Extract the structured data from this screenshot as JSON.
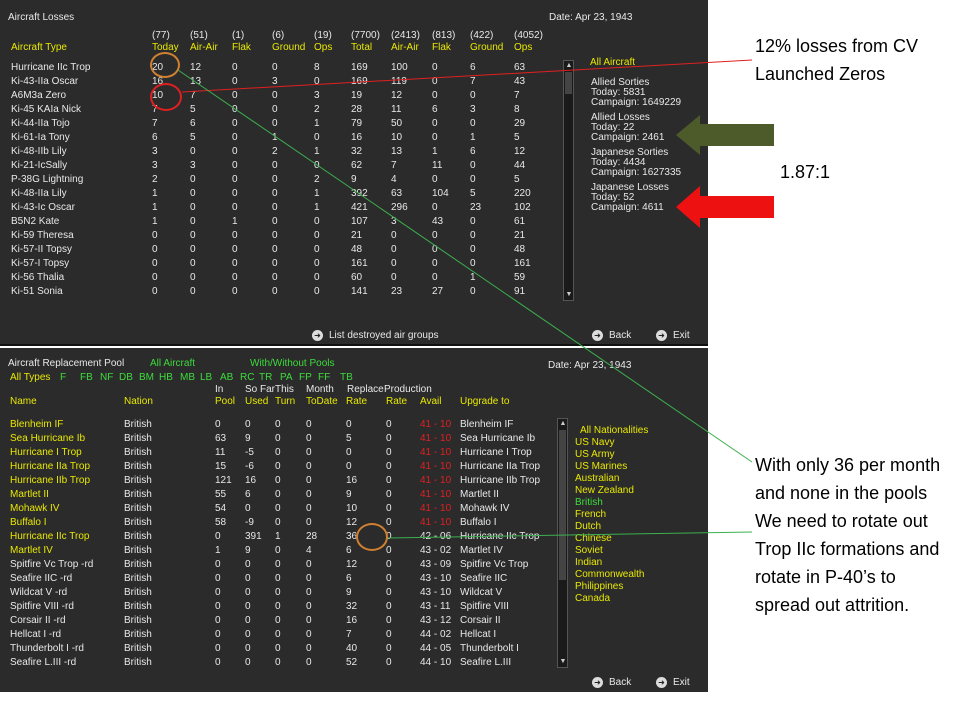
{
  "top": {
    "title": "Aircraft Losses",
    "date": "Date: Apr 23, 1943",
    "header_totals": [
      "(77)",
      "(51)",
      "(1)",
      "(6)",
      "(19)",
      "(7700)",
      "(2413)",
      "(813)",
      "(422)",
      "(4052)"
    ],
    "columns": [
      "Aircraft Type",
      "Today",
      "Air-Air",
      "Flak",
      "Ground",
      "Ops",
      "Total",
      "Air-Air",
      "Flak",
      "Ground",
      "Ops"
    ],
    "rows": [
      [
        "Hurricane IIc Trop",
        "20",
        "12",
        "0",
        "0",
        "8",
        "169",
        "100",
        "0",
        "6",
        "63"
      ],
      [
        "Ki-43-IIa Oscar",
        "16",
        "13",
        "0",
        "3",
        "0",
        "169",
        "119",
        "0",
        "7",
        "43"
      ],
      [
        "A6M3a Zero",
        "10",
        "7",
        "0",
        "0",
        "3",
        "19",
        "12",
        "0",
        "0",
        "7"
      ],
      [
        "Ki-45 KAIa Nick",
        "7",
        "5",
        "0",
        "0",
        "2",
        "28",
        "11",
        "6",
        "3",
        "8"
      ],
      [
        "Ki-44-IIa Tojo",
        "7",
        "6",
        "0",
        "0",
        "1",
        "79",
        "50",
        "0",
        "0",
        "29"
      ],
      [
        "Ki-61-Ia Tony",
        "6",
        "5",
        "0",
        "1",
        "0",
        "16",
        "10",
        "0",
        "1",
        "5"
      ],
      [
        "Ki-48-IIb Lily",
        "3",
        "0",
        "0",
        "2",
        "1",
        "32",
        "13",
        "1",
        "6",
        "12"
      ],
      [
        "Ki-21-IcSally",
        "3",
        "3",
        "0",
        "0",
        "0",
        "62",
        "7",
        "11",
        "0",
        "44"
      ],
      [
        "P-38G Lightning",
        "2",
        "0",
        "0",
        "0",
        "2",
        "9",
        "4",
        "0",
        "0",
        "5"
      ],
      [
        "Ki-48-IIa Lily",
        "1",
        "0",
        "0",
        "0",
        "1",
        "392",
        "63",
        "104",
        "5",
        "220"
      ],
      [
        "Ki-43-Ic Oscar",
        "1",
        "0",
        "0",
        "0",
        "1",
        "421",
        "296",
        "0",
        "23",
        "102"
      ],
      [
        "B5N2 Kate",
        "1",
        "0",
        "1",
        "0",
        "0",
        "107",
        "3",
        "43",
        "0",
        "61"
      ],
      [
        "Ki-59 Theresa",
        "0",
        "0",
        "0",
        "0",
        "0",
        "21",
        "0",
        "0",
        "0",
        "21"
      ],
      [
        "Ki-57-II Topsy",
        "0",
        "0",
        "0",
        "0",
        "0",
        "48",
        "0",
        "0",
        "0",
        "48"
      ],
      [
        "Ki-57-I Topsy",
        "0",
        "0",
        "0",
        "0",
        "0",
        "161",
        "0",
        "0",
        "0",
        "161"
      ],
      [
        "Ki-56 Thalia",
        "0",
        "0",
        "0",
        "0",
        "0",
        "60",
        "0",
        "0",
        "1",
        "59"
      ],
      [
        "Ki-51 Sonia",
        "0",
        "0",
        "0",
        "0",
        "0",
        "141",
        "23",
        "27",
        "0",
        "91"
      ]
    ],
    "side": {
      "filter": "All Aircraft",
      "allied_sorties": {
        "label": "Allied Sorties",
        "today": "Today:  5831",
        "campaign": "Campaign: 1649229"
      },
      "allied_losses": {
        "label": "Allied Losses",
        "today": "Today:   22",
        "campaign": "Campaign: 2461"
      },
      "japanese_sorties": {
        "label": "Japanese Sorties",
        "today": "Today:  4434",
        "campaign": "Campaign: 1627335"
      },
      "japanese_losses": {
        "label": "Japanese Losses",
        "today": "Today:   52",
        "campaign": "Campaign: 4611"
      }
    },
    "list_destroyed": "List destroyed air groups",
    "back": "Back",
    "exit": "Exit"
  },
  "bottom": {
    "title": "Aircraft Replacement Pool",
    "filter_all": "All Aircraft",
    "filter_pools": "With/Without Pools",
    "date": "Date: Apr 23, 1943",
    "types": [
      "All Types",
      "F",
      "FB",
      "NF",
      "DB",
      "BM",
      "HB",
      "MB",
      "LB",
      "AB",
      "RC",
      "TR",
      "PA",
      "FP",
      "FF",
      "TB"
    ],
    "header1": [
      "In",
      "So Far",
      "This",
      "Month",
      "Replace",
      "Production"
    ],
    "columns": [
      "Name",
      "Nation",
      "Pool",
      "Used",
      "Turn",
      "ToDate",
      "Rate",
      "Rate",
      "Avail",
      "Upgrade to"
    ],
    "rows": [
      [
        "Blenheim IF",
        "British",
        "0",
        "0",
        "0",
        "0",
        "0",
        "0",
        "41 - 10",
        "Blenheim IF",
        "y"
      ],
      [
        "Sea Hurricane Ib",
        "British",
        "63",
        "9",
        "0",
        "0",
        "5",
        "0",
        "41 - 10",
        "Sea Hurricane Ib",
        "y"
      ],
      [
        "Hurricane I Trop",
        "British",
        "11",
        "-5",
        "0",
        "0",
        "0",
        "0",
        "41 - 10",
        "Hurricane I Trop",
        "y"
      ],
      [
        "Hurricane IIa Trop",
        "British",
        "15",
        "-6",
        "0",
        "0",
        "0",
        "0",
        "41 - 10",
        "Hurricane IIa Trop",
        "y"
      ],
      [
        "Hurricane IIb Trop",
        "British",
        "121",
        "16",
        "0",
        "0",
        "16",
        "0",
        "41 - 10",
        "Hurricane IIb Trop",
        "y"
      ],
      [
        "Martlet II",
        "British",
        "55",
        "6",
        "0",
        "0",
        "9",
        "0",
        "41 - 10",
        "Martlet II",
        "y"
      ],
      [
        "Mohawk IV",
        "British",
        "54",
        "0",
        "0",
        "0",
        "10",
        "0",
        "41 - 10",
        "Mohawk IV",
        "y"
      ],
      [
        "Buffalo I",
        "British",
        "58",
        "-9",
        "0",
        "0",
        "12",
        "0",
        "41 - 10",
        "Buffalo I",
        "y"
      ],
      [
        "Hurricane IIc Trop",
        "British",
        "0",
        "391",
        "1",
        "28",
        "36",
        "0",
        "42 - 06",
        "Hurricane IIc Trop",
        "y"
      ],
      [
        "Martlet IV",
        "British",
        "1",
        "9",
        "0",
        "4",
        "6",
        "0",
        "43 - 02",
        "Martlet IV",
        "y"
      ],
      [
        "Spitfire Vc Trop -rd",
        "British",
        "0",
        "0",
        "0",
        "0",
        "12",
        "0",
        "43 - 09",
        "Spitfire Vc Trop",
        "w"
      ],
      [
        "Seafire IIC -rd",
        "British",
        "0",
        "0",
        "0",
        "0",
        "6",
        "0",
        "43 - 10",
        "Seafire IIC",
        "w"
      ],
      [
        "Wildcat V -rd",
        "British",
        "0",
        "0",
        "0",
        "0",
        "9",
        "0",
        "43 - 10",
        "Wildcat V",
        "w"
      ],
      [
        "Spitfire VIII -rd",
        "British",
        "0",
        "0",
        "0",
        "0",
        "32",
        "0",
        "43 - 11",
        "Spitfire VIII",
        "w"
      ],
      [
        "Corsair II -rd",
        "British",
        "0",
        "0",
        "0",
        "0",
        "16",
        "0",
        "43 - 12",
        "Corsair II",
        "w"
      ],
      [
        "Hellcat I -rd",
        "British",
        "0",
        "0",
        "0",
        "0",
        "7",
        "0",
        "44 - 02",
        "Hellcat I",
        "w"
      ],
      [
        "Thunderbolt I -rd",
        "British",
        "0",
        "0",
        "0",
        "0",
        "40",
        "0",
        "44 - 05",
        "Thunderbolt I",
        "w"
      ],
      [
        "Seafire L.III -rd",
        "British",
        "0",
        "0",
        "0",
        "0",
        "52",
        "0",
        "44 - 10",
        "Seafire L.III",
        "w"
      ]
    ],
    "nationalities": [
      "All Nationalities",
      "US Navy",
      "US Army",
      "US Marines",
      "Australian",
      "New Zealand",
      "British",
      "French",
      "Dutch",
      "Chinese",
      "Soviet",
      "Indian",
      "Commonwealth",
      "Philippines",
      "Canada"
    ],
    "back": "Back",
    "exit": "Exit"
  },
  "annotations": {
    "zeros": "12% losses from CV Launched Zeros",
    "ratio": "1.87:1",
    "trop": "With only 36 per month and none in the pools We need to rotate out Trop IIc formations and rotate in P-40’s to spread out attrition."
  },
  "colors": {
    "panel": "#2b2b2b",
    "yellow": "#e8e800",
    "green": "#3cdc3c",
    "red": "#e02020",
    "olive_arrow": "#4d5a2a",
    "orange_circle": "#d08030"
  }
}
